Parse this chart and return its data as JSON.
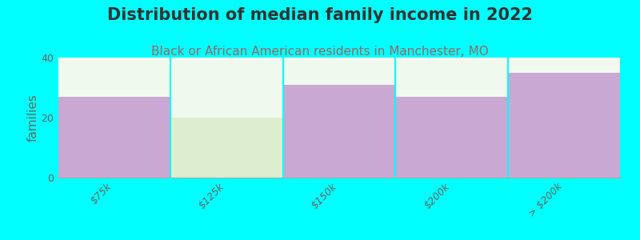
{
  "title": "Distribution of median family income in 2022",
  "subtitle": "Black or African American residents in Manchester, MO",
  "categories": [
    "$75k",
    "$125k",
    "$150k",
    "$200k",
    "> $200k"
  ],
  "values": [
    27,
    20,
    31,
    27,
    35
  ],
  "bar_colors": [
    "#c9a8d4",
    "#ddeece",
    "#c9a8d4",
    "#c9a8d4",
    "#c9a8d4"
  ],
  "ylabel": "families",
  "ylim": [
    0,
    40
  ],
  "yticks": [
    0,
    20,
    40
  ],
  "background_color": "#00FFFF",
  "plot_bg_color": "#f0f9ee",
  "title_fontsize": 15,
  "subtitle_fontsize": 11,
  "tick_label_fontsize": 9,
  "ylabel_fontsize": 11,
  "title_color": "#333333",
  "subtitle_color": "#996666",
  "tick_color": "#666666"
}
